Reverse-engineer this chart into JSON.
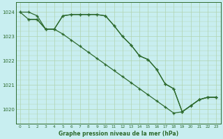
{
  "background_color": "#c8eef0",
  "grid_color": "#b0d4b0",
  "line_color": "#2d6a2d",
  "title": "Graphe pression niveau de la mer (hPa)",
  "xlim": [
    -0.5,
    23.5
  ],
  "ylim": [
    1019.4,
    1024.4
  ],
  "yticks": [
    1020,
    1021,
    1022,
    1023,
    1024
  ],
  "xticks": [
    0,
    1,
    2,
    3,
    4,
    5,
    6,
    7,
    8,
    9,
    10,
    11,
    12,
    13,
    14,
    15,
    16,
    17,
    18,
    19,
    20,
    21,
    22,
    23
  ],
  "series1_x": [
    0,
    1,
    2,
    3,
    4,
    5,
    6,
    7,
    8,
    9,
    10,
    11,
    12,
    13,
    14,
    15,
    16,
    17,
    18,
    19,
    20,
    21,
    22,
    23
  ],
  "series1_y": [
    1024.0,
    1024.0,
    1023.85,
    1023.3,
    1023.3,
    1023.85,
    1023.9,
    1023.9,
    1023.9,
    1023.9,
    1023.85,
    1023.45,
    1023.0,
    1022.65,
    1022.2,
    1022.05,
    1021.65,
    1021.05,
    1020.85,
    1019.9,
    1020.15,
    1020.4,
    1020.5,
    1020.5
  ],
  "series2_x": [
    0,
    1,
    2,
    3,
    4,
    5,
    6,
    7,
    8,
    9,
    10,
    11,
    12,
    13,
    14,
    15,
    16,
    17,
    18,
    19,
    20,
    21,
    22,
    23
  ],
  "series2_y": [
    1024.0,
    1023.7,
    1023.7,
    1023.3,
    1023.3,
    1023.1,
    1022.85,
    1022.6,
    1022.35,
    1022.1,
    1021.85,
    1021.6,
    1021.35,
    1021.1,
    1020.85,
    1020.6,
    1020.35,
    1020.1,
    1019.85,
    1019.9,
    1020.15,
    1020.4,
    1020.5,
    1020.5
  ],
  "series3_x": [
    1,
    2,
    3,
    4,
    5,
    6,
    7,
    8,
    9,
    10,
    11,
    12,
    13,
    14,
    15,
    16,
    17,
    18,
    19,
    20,
    21,
    22,
    23
  ],
  "series3_y": [
    1023.7,
    1023.7,
    1023.3,
    1023.3,
    1023.85,
    1023.9,
    1023.9,
    1023.9,
    1023.9,
    1023.85,
    1023.45,
    1023.0,
    1022.65,
    1022.2,
    1022.05,
    1021.65,
    1021.05,
    1020.85,
    1019.9,
    1020.15,
    1020.4,
    1020.5,
    1020.5
  ]
}
